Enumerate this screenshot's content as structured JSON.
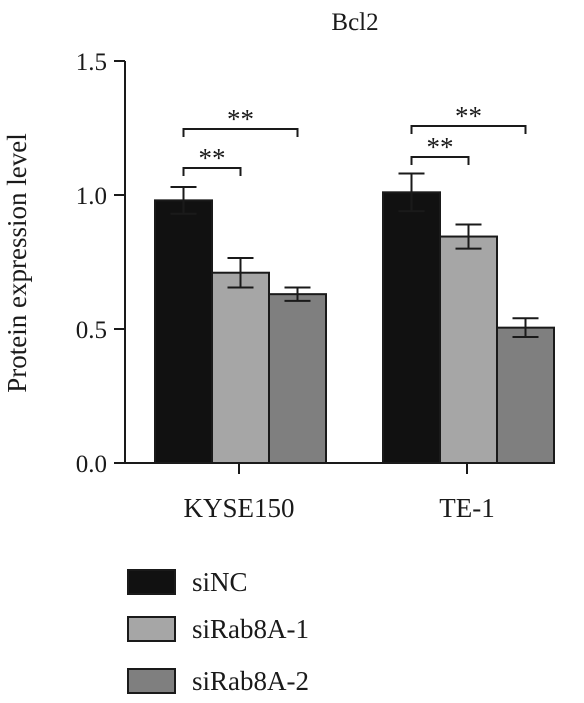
{
  "chart_data": {
    "type": "bar",
    "title": "Bcl2",
    "xlabel": "",
    "ylabel": "Protein expression level",
    "ylim": [
      0,
      1.5
    ],
    "yticks": [
      "0.0",
      "0.5",
      "1.0",
      "1.5"
    ],
    "categories": [
      "KYSE150",
      "TE-1"
    ],
    "series": [
      {
        "name": "siNC",
        "color": "#111111",
        "values": [
          0.98,
          1.01
        ],
        "errors": [
          0.05,
          0.07
        ]
      },
      {
        "name": "siRab8A-1",
        "color": "#a6a6a6",
        "values": [
          0.71,
          0.845
        ],
        "errors": [
          0.055,
          0.045
        ]
      },
      {
        "name": "siRab8A-2",
        "color": "#7f7f7f",
        "values": [
          0.63,
          0.505
        ],
        "errors": [
          0.025,
          0.035
        ]
      }
    ],
    "significance": [
      {
        "category": "KYSE150",
        "from": "siNC",
        "to": "siRab8A-1",
        "label": "**"
      },
      {
        "category": "KYSE150",
        "from": "siNC",
        "to": "siRab8A-2",
        "label": "**"
      },
      {
        "category": "TE-1",
        "from": "siNC",
        "to": "siRab8A-1",
        "label": "**"
      },
      {
        "category": "TE-1",
        "from": "siNC",
        "to": "siRab8A-2",
        "label": "**"
      }
    ],
    "legend_position": "bottom-left",
    "grid": false
  }
}
